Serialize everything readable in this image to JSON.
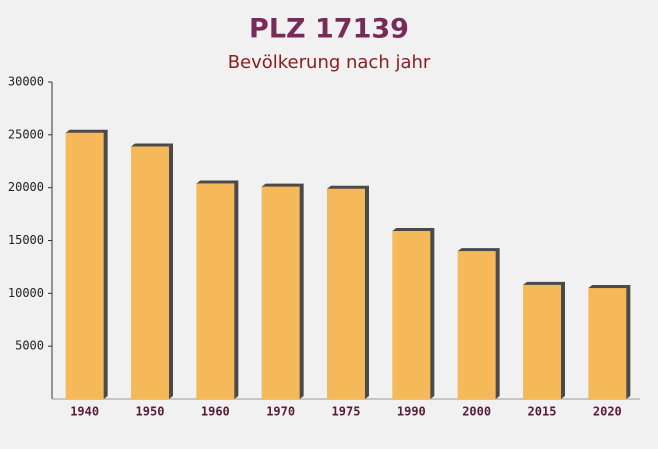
{
  "chart_data": {
    "type": "bar",
    "title": "PLZ 17139",
    "subtitle": "Bevölkerung nach jahr",
    "categories": [
      "1940",
      "1950",
      "1960",
      "1970",
      "1975",
      "1990",
      "2000",
      "2015",
      "2020"
    ],
    "values": [
      25200,
      23900,
      20400,
      20100,
      19900,
      15900,
      14000,
      10800,
      10500
    ],
    "color": "#f5b95a",
    "ylim": [
      0,
      30000
    ],
    "yticks": [
      5000,
      10000,
      15000,
      20000,
      25000,
      30000
    ],
    "grid": false
  }
}
